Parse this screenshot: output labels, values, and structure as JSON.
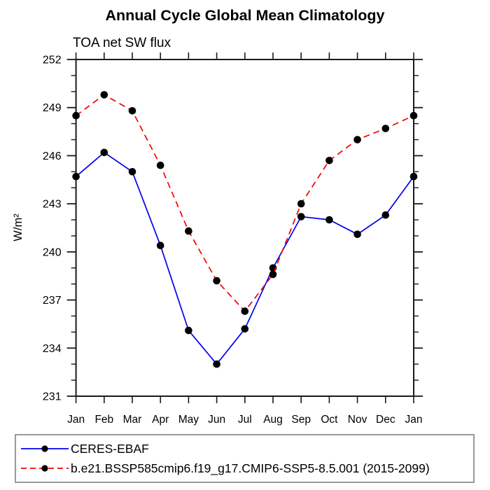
{
  "chart": {
    "title": "Annual Cycle Global Mean Climatology",
    "subtitle": "TOA net SW flux",
    "ylabel": "W/m²"
  },
  "chart_data": {
    "type": "line",
    "x_categories": [
      "Jan",
      "Feb",
      "Mar",
      "Apr",
      "May",
      "Jun",
      "Jul",
      "Aug",
      "Sep",
      "Oct",
      "Nov",
      "Dec",
      "Jan"
    ],
    "title": "Annual Cycle Global Mean Climatology",
    "subtitle": "TOA net SW flux",
    "xlabel": "",
    "ylabel": "W/m²",
    "ylim": [
      231,
      252
    ],
    "ytick_major_step": 3,
    "ytick_minor_step": 1,
    "ytick_labels": [
      "231",
      "234",
      "237",
      "240",
      "243",
      "246",
      "249",
      "252"
    ],
    "grid": false,
    "legend_position": "bottom",
    "series": [
      {
        "name": "CERES-EBAF",
        "color": "#0000ee",
        "line_style": "solid",
        "marker": "circle",
        "marker_color": "#000000",
        "values": [
          244.7,
          246.2,
          245.0,
          240.4,
          235.1,
          233.0,
          235.2,
          239.0,
          242.2,
          242.0,
          241.1,
          242.3,
          244.7
        ]
      },
      {
        "name": "b.e21.BSSP585cmip6.f19_g17.CMIP6-SSP5-8.5.001 (2015-2099)",
        "color": "#f40000",
        "line_style": "dashed",
        "marker": "circle",
        "marker_color": "#000000",
        "values": [
          248.5,
          249.8,
          248.8,
          245.4,
          241.3,
          238.2,
          236.3,
          238.6,
          243.0,
          245.7,
          247.0,
          247.7,
          248.5
        ]
      }
    ]
  },
  "style": {
    "axis_color": "#1a1a1a",
    "text_color": "#000000",
    "background": "#ffffff"
  }
}
